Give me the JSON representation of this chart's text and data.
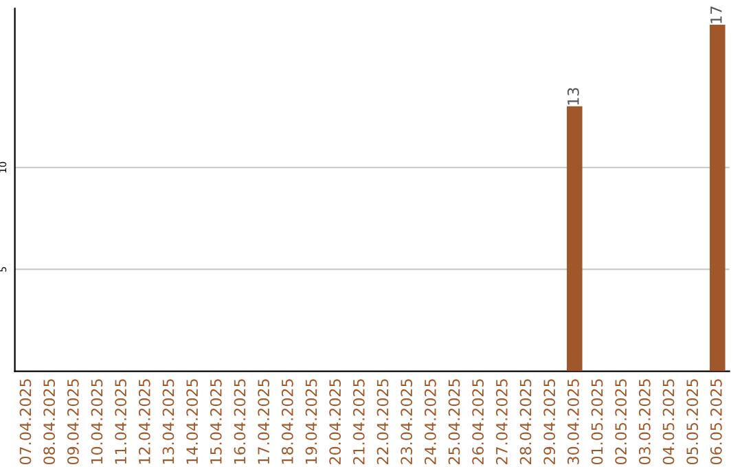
{
  "chart_data": {
    "type": "bar",
    "categories": [
      "07.04.2025",
      "08.04.2025",
      "09.04.2025",
      "10.04.2025",
      "11.04.2025",
      "12.04.2025",
      "13.04.2025",
      "14.04.2025",
      "15.04.2025",
      "16.04.2025",
      "17.04.2025",
      "18.04.2025",
      "19.04.2025",
      "20.04.2025",
      "21.04.2025",
      "22.04.2025",
      "23.04.2025",
      "24.04.2025",
      "25.04.2025",
      "26.04.2025",
      "27.04.2025",
      "28.04.2025",
      "29.04.2025",
      "30.04.2025",
      "01.05.2025",
      "02.05.2025",
      "03.05.2025",
      "04.05.2025",
      "05.05.2025",
      "06.05.2025"
    ],
    "values": [
      0,
      0,
      0,
      0,
      0,
      0,
      0,
      0,
      0,
      0,
      0,
      0,
      0,
      0,
      0,
      0,
      0,
      0,
      0,
      0,
      0,
      0,
      0,
      13,
      0,
      0,
      0,
      0,
      0,
      17
    ],
    "value_labels": [
      null,
      null,
      null,
      null,
      null,
      null,
      null,
      null,
      null,
      null,
      null,
      null,
      null,
      null,
      null,
      null,
      null,
      null,
      null,
      null,
      null,
      null,
      null,
      "13",
      null,
      null,
      null,
      null,
      null,
      "17"
    ],
    "color": "#a0582a",
    "ylim": [
      0,
      17.8
    ],
    "yticks": [
      5,
      10
    ],
    "grid": "y",
    "legend": false
  }
}
